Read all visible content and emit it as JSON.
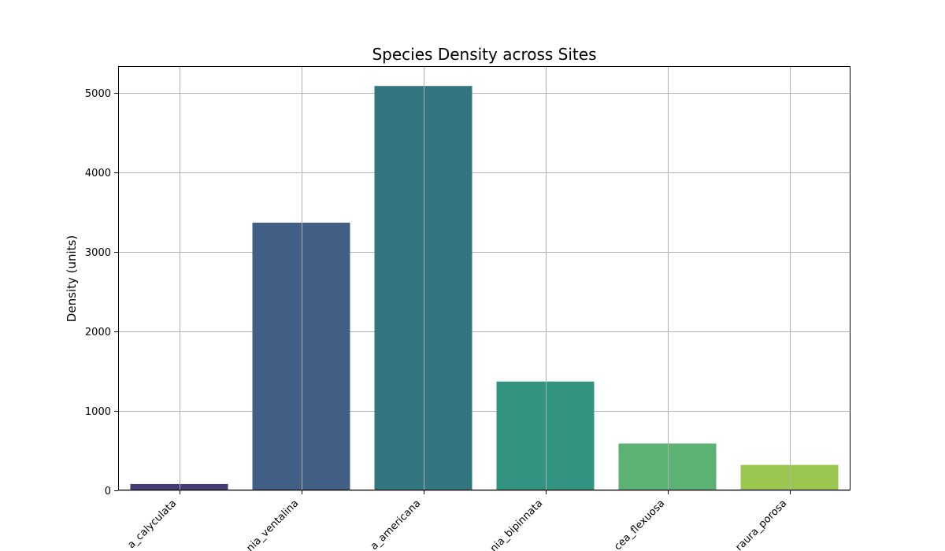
{
  "chart_data": {
    "type": "bar",
    "title": "Species Density across Sites",
    "xlabel": "",
    "ylabel": "Density (units)",
    "categories": [
      "a_calyculata",
      "nia_ventalina",
      "a_americana",
      "nia_bipinnata",
      "cea_flexuosa",
      "raura_porosa"
    ],
    "values": [
      80,
      3370,
      5090,
      1370,
      590,
      320
    ],
    "colors": [
      "#463a74",
      "#415f85",
      "#33767f",
      "#329380",
      "#5bb272",
      "#9ac54f"
    ],
    "ylim": [
      0,
      5340
    ],
    "yticks": [
      0,
      1000,
      2000,
      3000,
      4000,
      5000
    ],
    "grid": true
  }
}
